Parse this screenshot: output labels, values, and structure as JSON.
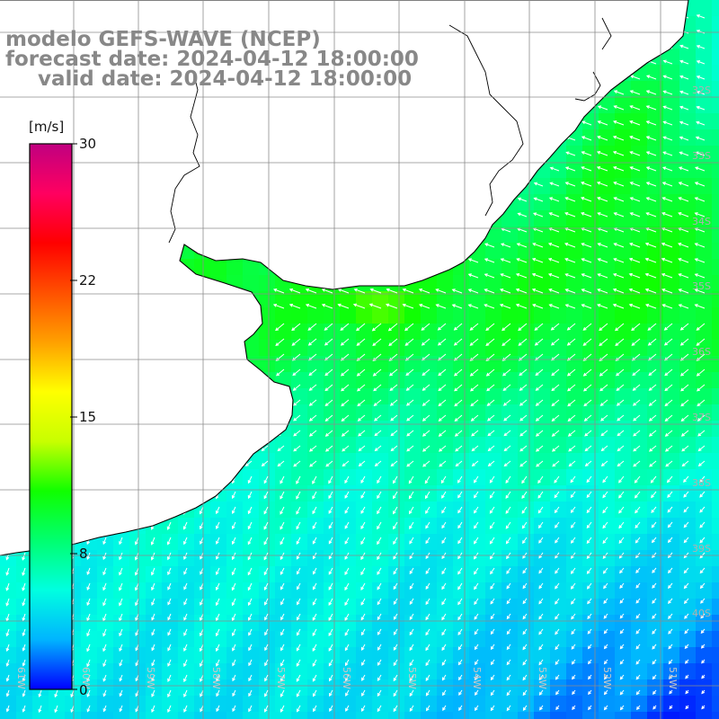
{
  "title": {
    "line1": "modelo GEFS-WAVE (NCEP)",
    "line2": "forecast date: 2024-04-12 18:00:00",
    "line3": "valid date: 2024-04-12 18:00:00"
  },
  "colorbar": {
    "unit": "[m/s]",
    "ticks": [
      "30",
      "22",
      "15",
      "8",
      "0"
    ],
    "min": 0,
    "max": 30,
    "colors": [
      "#0000ff",
      "#00b4ff",
      "#00ffe0",
      "#00ff70",
      "#10ff00",
      "#c8ff00",
      "#ffff00",
      "#ffa000",
      "#ff5000",
      "#ff0000",
      "#ff0060",
      "#c00080"
    ]
  },
  "map": {
    "field": "wind speed [m/s] with direction arrows",
    "lat_labels": [
      "32S",
      "33S",
      "34S",
      "35S",
      "36S",
      "37S",
      "38S",
      "39S",
      "40S"
    ],
    "lon_labels": [
      "61W",
      "60W",
      "59W",
      "58W",
      "57W",
      "56W",
      "55W",
      "54W",
      "53W",
      "52W",
      "51W"
    ],
    "land_color": "#ffffff",
    "coast_color": "#000000",
    "grid_color": "#8c8c8c"
  }
}
